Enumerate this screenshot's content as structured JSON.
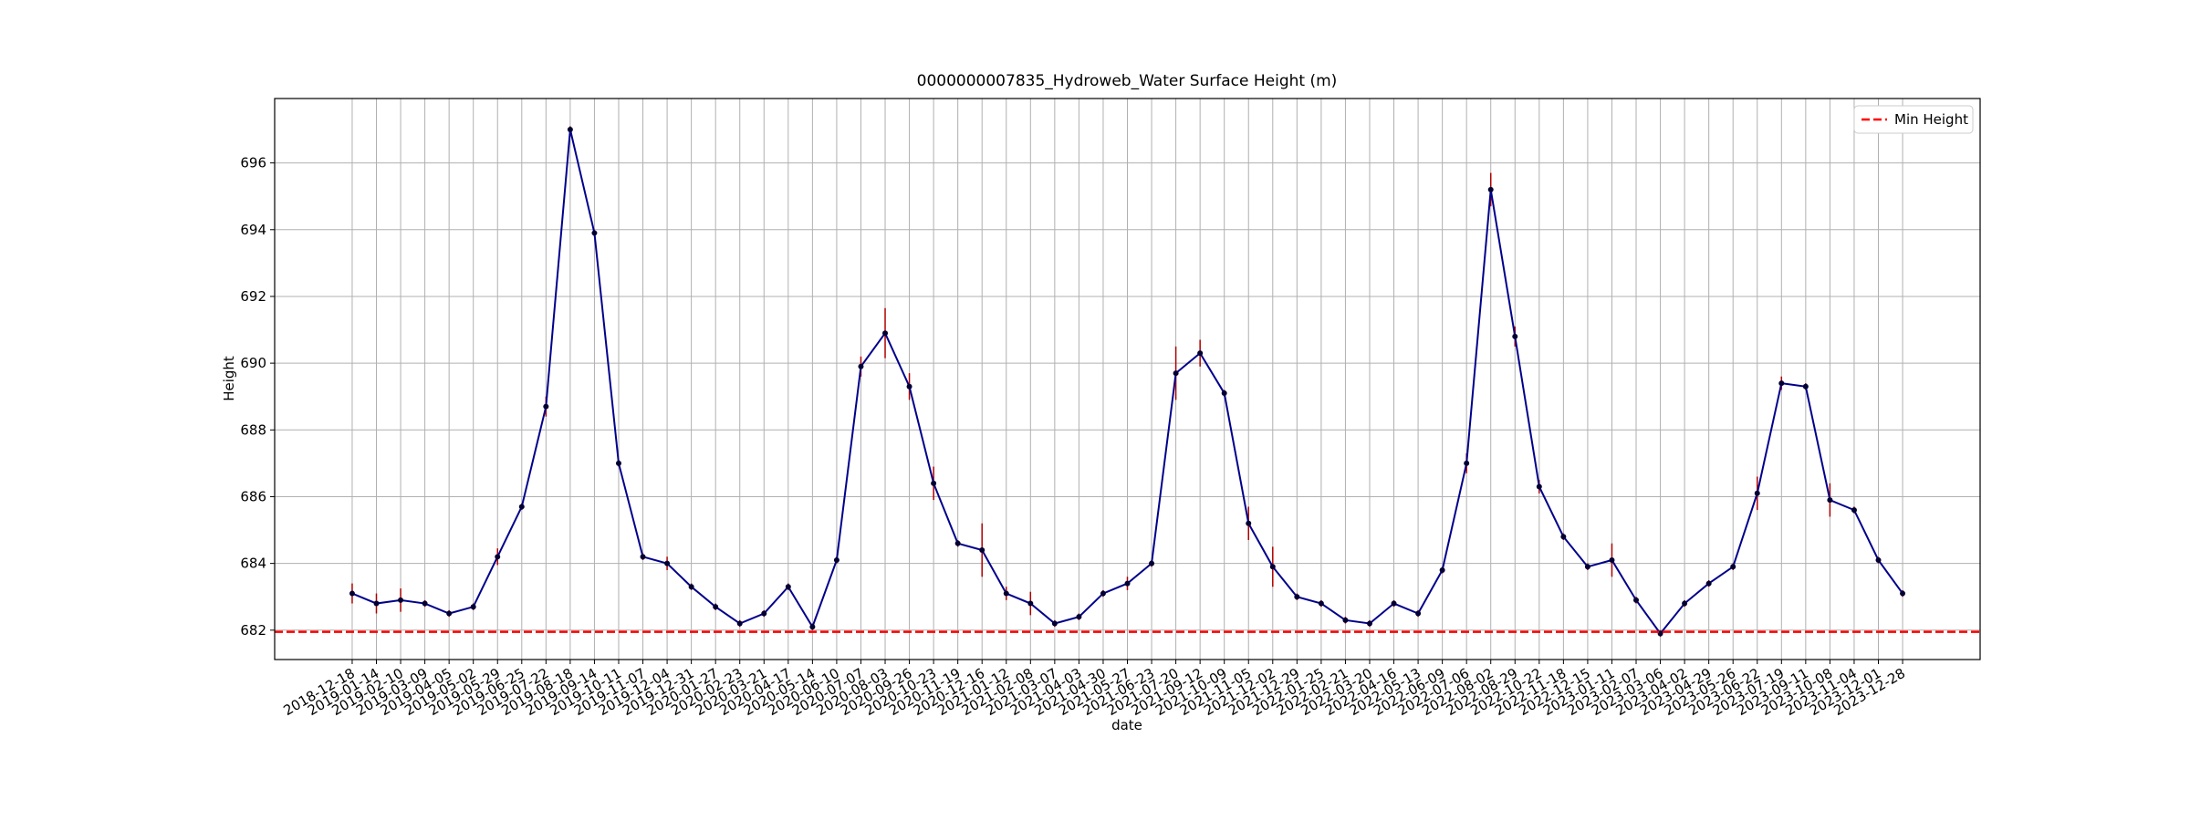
{
  "chart_data": {
    "type": "line",
    "title": "0000000007835_Hydroweb_Water Surface Height (m)",
    "xlabel": "date",
    "ylabel": "Height",
    "categories": [
      "2018-12-18",
      "2019-01-14",
      "2019-02-10",
      "2019-03-09",
      "2019-04-05",
      "2019-05-02",
      "2019-05-29",
      "2019-06-25",
      "2019-07-22",
      "2019-08-18",
      "2019-09-14",
      "2019-10-11",
      "2019-11-07",
      "2019-12-04",
      "2019-12-31",
      "2020-01-27",
      "2020-02-23",
      "2020-03-21",
      "2020-04-17",
      "2020-05-14",
      "2020-06-10",
      "2020-07-07",
      "2020-08-03",
      "2020-09-26",
      "2020-10-23",
      "2020-11-19",
      "2020-12-16",
      "2021-01-12",
      "2021-02-08",
      "2021-03-07",
      "2021-04-03",
      "2021-04-30",
      "2021-05-27",
      "2021-06-23",
      "2021-07-20",
      "2021-09-12",
      "2021-10-09",
      "2021-11-05",
      "2021-12-02",
      "2021-12-29",
      "2022-01-25",
      "2022-02-21",
      "2022-03-20",
      "2022-04-16",
      "2022-05-13",
      "2022-06-09",
      "2022-07-06",
      "2022-08-02",
      "2022-08-29",
      "2022-10-22",
      "2022-11-18",
      "2022-12-15",
      "2023-01-11",
      "2023-02-07",
      "2023-03-06",
      "2023-04-02",
      "2023-04-29",
      "2023-05-26",
      "2023-06-22",
      "2023-07-19",
      "2023-09-11",
      "2023-10-08",
      "2023-11-04",
      "2023-12-01",
      "2023-12-28"
    ],
    "series": [
      {
        "name": "Height",
        "color": "#00008b",
        "values": [
          683.1,
          682.8,
          682.9,
          682.8,
          682.5,
          682.7,
          684.2,
          685.7,
          688.7,
          697.0,
          693.9,
          687.0,
          684.2,
          684.0,
          683.3,
          682.7,
          682.2,
          682.5,
          683.3,
          682.1,
          684.1,
          689.9,
          690.9,
          689.3,
          686.4,
          684.6,
          684.4,
          683.1,
          682.8,
          682.2,
          682.4,
          683.1,
          683.4,
          684.0,
          689.7,
          690.3,
          689.1,
          685.2,
          683.9,
          683.0,
          682.8,
          682.3,
          682.2,
          682.8,
          682.5,
          683.8,
          687.0,
          695.2,
          690.8,
          686.3,
          684.8,
          683.9,
          684.1,
          682.9,
          681.9,
          682.8,
          683.4,
          683.9,
          686.1,
          689.4,
          689.3,
          685.9,
          685.6,
          684.1,
          683.1
        ],
        "errors": [
          0.3,
          0.3,
          0.35,
          0.1,
          0.1,
          0.1,
          0.25,
          0.1,
          0.3,
          0.1,
          0.1,
          0.1,
          0.1,
          0.2,
          0.1,
          0.1,
          0.1,
          0.1,
          0.1,
          0.1,
          0.1,
          0.3,
          0.75,
          0.4,
          0.5,
          0.1,
          0.8,
          0.2,
          0.35,
          0.1,
          0.1,
          0.1,
          0.2,
          0.1,
          0.8,
          0.4,
          0.1,
          0.5,
          0.6,
          0.1,
          0.1,
          0.1,
          0.1,
          0.1,
          0.1,
          0.1,
          0.3,
          0.5,
          0.3,
          0.2,
          0.1,
          0.1,
          0.5,
          0.1,
          0.1,
          0.1,
          0.1,
          0.1,
          0.5,
          0.2,
          0.1,
          0.5,
          0.1,
          0.1,
          0.1
        ],
        "error_color": "#b00000"
      }
    ],
    "reference_line": {
      "name": "Min Height",
      "value": 681.95,
      "color": "#ff0000"
    },
    "ylim": [
      681.12,
      697.93
    ],
    "yticks": [
      682,
      684,
      686,
      688,
      690,
      692,
      694,
      696
    ],
    "grid": true,
    "legend": "upper right"
  }
}
